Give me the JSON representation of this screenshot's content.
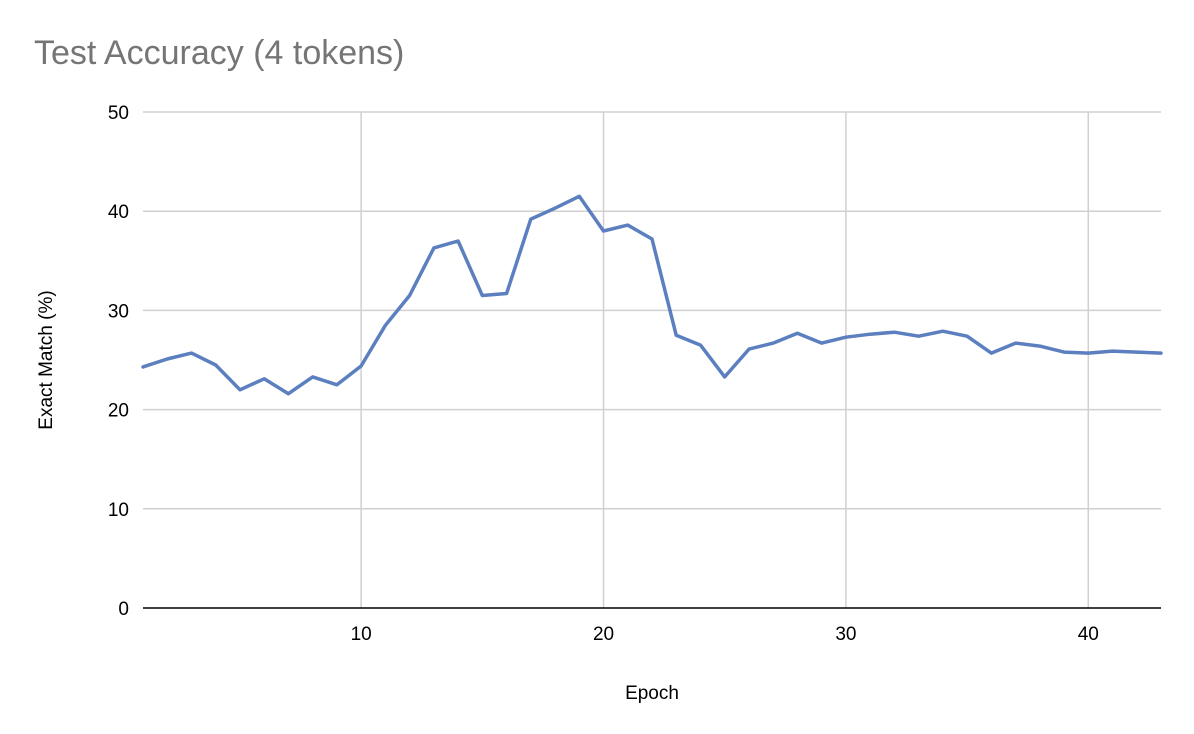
{
  "chart_data": {
    "type": "line",
    "title": "Test Accuracy (4 tokens)",
    "xlabel": "Epoch",
    "ylabel": "Exact Match (%)",
    "xlim": [
      1,
      43
    ],
    "ylim": [
      0,
      50
    ],
    "x_ticks": [
      10,
      20,
      30,
      40
    ],
    "y_ticks": [
      0,
      10,
      20,
      30,
      40,
      50
    ],
    "grid": true,
    "legend": "none",
    "series": [
      {
        "color": "#5B7FBF",
        "x": [
          1,
          2,
          3,
          4,
          5,
          6,
          7,
          8,
          9,
          10,
          11,
          12,
          13,
          14,
          15,
          16,
          17,
          18,
          19,
          20,
          21,
          22,
          23,
          24,
          25,
          26,
          27,
          28,
          29,
          30,
          31,
          32,
          33,
          34,
          35,
          36,
          37,
          38,
          39,
          40,
          41,
          42,
          43
        ],
        "values": [
          24.3,
          25.1,
          25.7,
          24.5,
          22.0,
          23.1,
          21.6,
          23.3,
          22.5,
          24.4,
          28.5,
          31.5,
          36.3,
          37.0,
          31.5,
          31.7,
          39.2,
          40.3,
          41.5,
          38.0,
          38.6,
          37.2,
          27.5,
          26.5,
          23.3,
          26.1,
          26.7,
          27.7,
          26.7,
          27.3,
          27.6,
          27.8,
          27.4,
          27.9,
          27.4,
          25.7,
          26.7,
          26.4,
          25.8,
          25.7,
          25.9,
          25.8,
          25.7
        ]
      }
    ]
  }
}
